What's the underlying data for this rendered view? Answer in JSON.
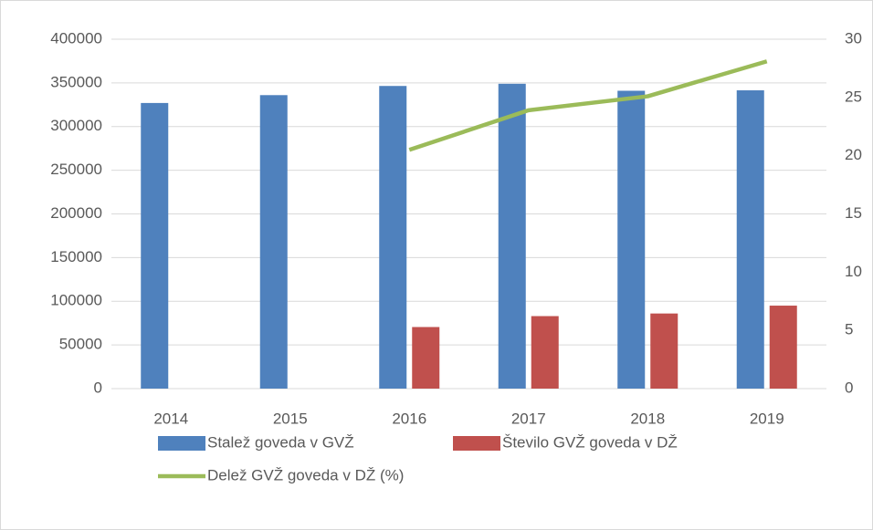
{
  "chart_data": {
    "type": "bar",
    "categories": [
      "2014",
      "2015",
      "2016",
      "2017",
      "2018",
      "2019"
    ],
    "series": [
      {
        "name": "Stalež goveda v GVŽ",
        "color": "#4f81bd",
        "type": "bar",
        "values": [
          327000,
          336000,
          346500,
          349000,
          341000,
          341500
        ]
      },
      {
        "name": "Število GVŽ  goveda v DŽ",
        "color": "#c0504d",
        "type": "bar",
        "values": [
          null,
          null,
          70500,
          83000,
          86000,
          95000
        ]
      },
      {
        "name": "Delež GVŽ goveda v DŽ (%)",
        "color": "#9bbb59",
        "type": "line",
        "axis": "y2",
        "values": [
          null,
          null,
          20.5,
          23.9,
          25.1,
          28.1
        ]
      }
    ],
    "ylim": [
      0,
      400000
    ],
    "yticks": [
      0,
      50000,
      100000,
      150000,
      200000,
      250000,
      300000,
      350000,
      400000
    ],
    "y2lim": [
      0,
      30
    ],
    "y2ticks": [
      0,
      5,
      10,
      15,
      20,
      25,
      30
    ],
    "grid": true,
    "legend": "bottom"
  }
}
